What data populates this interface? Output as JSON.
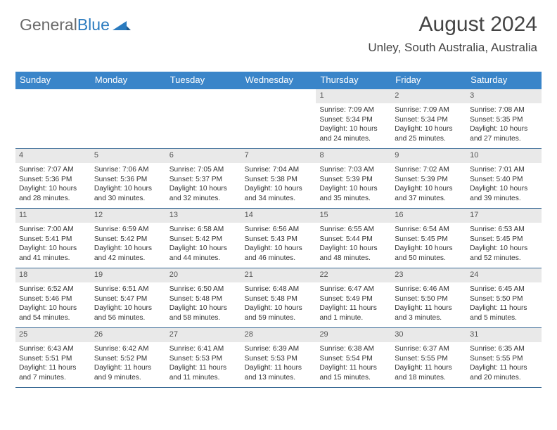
{
  "logo": {
    "text1": "General",
    "text2": "Blue"
  },
  "title": "August 2024",
  "location": "Unley, South Australia, Australia",
  "colors": {
    "header_bg": "#3a85c9",
    "header_text": "#ffffff",
    "daynum_bg": "#e9e9e9",
    "row_border": "#3a6a95",
    "logo_gray": "#6a6a6a",
    "logo_blue": "#2b7bbf",
    "text": "#333333"
  },
  "day_headers": [
    "Sunday",
    "Monday",
    "Tuesday",
    "Wednesday",
    "Thursday",
    "Friday",
    "Saturday"
  ],
  "weeks": [
    [
      {
        "empty": true
      },
      {
        "empty": true
      },
      {
        "empty": true
      },
      {
        "empty": true
      },
      {
        "num": "1",
        "sunrise": "7:09 AM",
        "sunset": "5:34 PM",
        "daylight": "10 hours and 24 minutes."
      },
      {
        "num": "2",
        "sunrise": "7:09 AM",
        "sunset": "5:34 PM",
        "daylight": "10 hours and 25 minutes."
      },
      {
        "num": "3",
        "sunrise": "7:08 AM",
        "sunset": "5:35 PM",
        "daylight": "10 hours and 27 minutes."
      }
    ],
    [
      {
        "num": "4",
        "sunrise": "7:07 AM",
        "sunset": "5:36 PM",
        "daylight": "10 hours and 28 minutes."
      },
      {
        "num": "5",
        "sunrise": "7:06 AM",
        "sunset": "5:36 PM",
        "daylight": "10 hours and 30 minutes."
      },
      {
        "num": "6",
        "sunrise": "7:05 AM",
        "sunset": "5:37 PM",
        "daylight": "10 hours and 32 minutes."
      },
      {
        "num": "7",
        "sunrise": "7:04 AM",
        "sunset": "5:38 PM",
        "daylight": "10 hours and 34 minutes."
      },
      {
        "num": "8",
        "sunrise": "7:03 AM",
        "sunset": "5:39 PM",
        "daylight": "10 hours and 35 minutes."
      },
      {
        "num": "9",
        "sunrise": "7:02 AM",
        "sunset": "5:39 PM",
        "daylight": "10 hours and 37 minutes."
      },
      {
        "num": "10",
        "sunrise": "7:01 AM",
        "sunset": "5:40 PM",
        "daylight": "10 hours and 39 minutes."
      }
    ],
    [
      {
        "num": "11",
        "sunrise": "7:00 AM",
        "sunset": "5:41 PM",
        "daylight": "10 hours and 41 minutes."
      },
      {
        "num": "12",
        "sunrise": "6:59 AM",
        "sunset": "5:42 PM",
        "daylight": "10 hours and 42 minutes."
      },
      {
        "num": "13",
        "sunrise": "6:58 AM",
        "sunset": "5:42 PM",
        "daylight": "10 hours and 44 minutes."
      },
      {
        "num": "14",
        "sunrise": "6:56 AM",
        "sunset": "5:43 PM",
        "daylight": "10 hours and 46 minutes."
      },
      {
        "num": "15",
        "sunrise": "6:55 AM",
        "sunset": "5:44 PM",
        "daylight": "10 hours and 48 minutes."
      },
      {
        "num": "16",
        "sunrise": "6:54 AM",
        "sunset": "5:45 PM",
        "daylight": "10 hours and 50 minutes."
      },
      {
        "num": "17",
        "sunrise": "6:53 AM",
        "sunset": "5:45 PM",
        "daylight": "10 hours and 52 minutes."
      }
    ],
    [
      {
        "num": "18",
        "sunrise": "6:52 AM",
        "sunset": "5:46 PM",
        "daylight": "10 hours and 54 minutes."
      },
      {
        "num": "19",
        "sunrise": "6:51 AM",
        "sunset": "5:47 PM",
        "daylight": "10 hours and 56 minutes."
      },
      {
        "num": "20",
        "sunrise": "6:50 AM",
        "sunset": "5:48 PM",
        "daylight": "10 hours and 58 minutes."
      },
      {
        "num": "21",
        "sunrise": "6:48 AM",
        "sunset": "5:48 PM",
        "daylight": "10 hours and 59 minutes."
      },
      {
        "num": "22",
        "sunrise": "6:47 AM",
        "sunset": "5:49 PM",
        "daylight": "11 hours and 1 minute."
      },
      {
        "num": "23",
        "sunrise": "6:46 AM",
        "sunset": "5:50 PM",
        "daylight": "11 hours and 3 minutes."
      },
      {
        "num": "24",
        "sunrise": "6:45 AM",
        "sunset": "5:50 PM",
        "daylight": "11 hours and 5 minutes."
      }
    ],
    [
      {
        "num": "25",
        "sunrise": "6:43 AM",
        "sunset": "5:51 PM",
        "daylight": "11 hours and 7 minutes."
      },
      {
        "num": "26",
        "sunrise": "6:42 AM",
        "sunset": "5:52 PM",
        "daylight": "11 hours and 9 minutes."
      },
      {
        "num": "27",
        "sunrise": "6:41 AM",
        "sunset": "5:53 PM",
        "daylight": "11 hours and 11 minutes."
      },
      {
        "num": "28",
        "sunrise": "6:39 AM",
        "sunset": "5:53 PM",
        "daylight": "11 hours and 13 minutes."
      },
      {
        "num": "29",
        "sunrise": "6:38 AM",
        "sunset": "5:54 PM",
        "daylight": "11 hours and 15 minutes."
      },
      {
        "num": "30",
        "sunrise": "6:37 AM",
        "sunset": "5:55 PM",
        "daylight": "11 hours and 18 minutes."
      },
      {
        "num": "31",
        "sunrise": "6:35 AM",
        "sunset": "5:55 PM",
        "daylight": "11 hours and 20 minutes."
      }
    ]
  ],
  "labels": {
    "sunrise": "Sunrise:",
    "sunset": "Sunset:",
    "daylight": "Daylight:"
  }
}
